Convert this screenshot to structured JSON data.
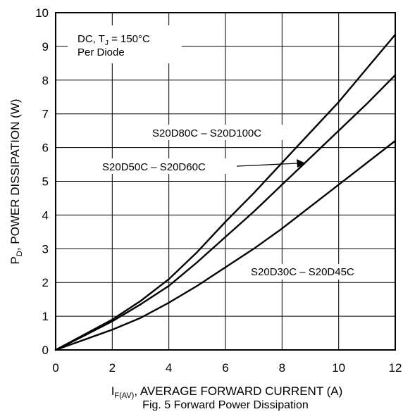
{
  "chart_data": {
    "type": "line",
    "title": "Fig. 5 Forward Power Dissipation",
    "xlabel_main": "I",
    "xlabel_sub": "F(AV)",
    "xlabel_rest": ", AVERAGE FORWARD CURRENT (A)",
    "ylabel_main": "P",
    "ylabel_sub": "D",
    "ylabel_rest": ", POWER DISSIPATION (W)",
    "xlim": [
      0,
      12
    ],
    "ylim": [
      0,
      10
    ],
    "xticks": [
      0,
      2,
      4,
      6,
      8,
      10,
      12
    ],
    "yticks": [
      0,
      1,
      2,
      3,
      4,
      5,
      6,
      7,
      8,
      9,
      10
    ],
    "grid": true,
    "conditions": {
      "line1_a": "DC, T",
      "line1_sub": "J",
      "line1_b": " = 150°C",
      "line2": "Per Diode"
    },
    "series": [
      {
        "name": "S20D80C – S20D100C",
        "x": [
          0,
          1,
          2,
          3,
          4,
          5,
          6,
          7,
          8,
          9,
          10,
          11,
          12
        ],
        "y": [
          0,
          0.45,
          0.9,
          1.45,
          2.1,
          2.9,
          3.8,
          4.65,
          5.55,
          6.45,
          7.35,
          8.35,
          9.35
        ]
      },
      {
        "name": "S20D50C – S20D60C",
        "x": [
          0,
          1,
          2,
          3,
          4,
          5,
          6,
          7,
          8,
          9,
          10,
          11,
          12
        ],
        "y": [
          0,
          0.42,
          0.85,
          1.35,
          1.9,
          2.6,
          3.35,
          4.1,
          4.9,
          5.7,
          6.5,
          7.3,
          8.15
        ]
      },
      {
        "name": "S20D30C – S20D45C",
        "x": [
          0,
          1,
          2,
          3,
          4,
          5,
          6,
          7,
          8,
          9,
          10,
          11,
          12
        ],
        "y": [
          0,
          0.3,
          0.6,
          0.95,
          1.4,
          1.9,
          2.45,
          3.0,
          3.6,
          4.25,
          4.9,
          5.55,
          6.2
        ]
      }
    ]
  }
}
